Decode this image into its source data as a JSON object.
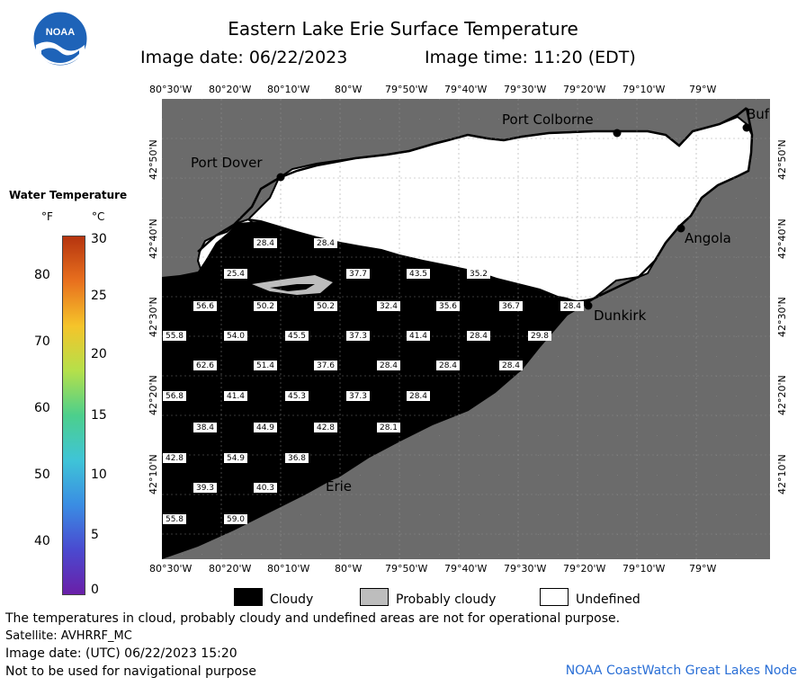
{
  "header": {
    "title": "Eastern Lake Erie Surface Temperature",
    "image_date": "Image date: 06/22/2023",
    "image_time": "Image time: 11:20 (EDT)"
  },
  "logo": {
    "text": "NOAA"
  },
  "map": {
    "lon_labels_top": [
      "80°30'W",
      "80°20'W",
      "80°10'W",
      "80°W",
      "79°50'W",
      "79°40'W",
      "79°30'W",
      "79°20'W",
      "79°10'W",
      "79°W"
    ],
    "lon_labels_bottom": [
      "80°30'W",
      "80°20'W",
      "80°10'W",
      "80°W",
      "79°50'W",
      "79°40'W",
      "79°30'W",
      "79°20'W",
      "79°10'W",
      "79°W"
    ],
    "lat_labels": [
      "42°50'N",
      "42°40'N",
      "42°30'N",
      "42°20'N",
      "42°10'N"
    ],
    "cities": [
      {
        "name": "Port Dover"
      },
      {
        "name": "Port Colborne"
      },
      {
        "name": "Buf"
      },
      {
        "name": "Angola"
      },
      {
        "name": "Dunkirk"
      },
      {
        "name": "Erie"
      }
    ],
    "temperatures": [
      "28.4",
      "28.4",
      "25.4",
      "37.7",
      "43.5",
      "35.2",
      "56.6",
      "50.2",
      "50.2",
      "32.4",
      "35.6",
      "36.7",
      "28.4",
      "55.8",
      "54.0",
      "45.5",
      "37.3",
      "41.4",
      "28.4",
      "29.8",
      "62.6",
      "51.4",
      "37.6",
      "28.4",
      "28.4",
      "28.4",
      "56.8",
      "41.4",
      "45.3",
      "37.3",
      "28.4",
      "38.4",
      "44.9",
      "42.8",
      "28.1",
      "42.8",
      "54.9",
      "36.8",
      "39.3",
      "40.3",
      "55.8",
      "59.0"
    ]
  },
  "legend": {
    "title": "Water Temperature",
    "unit_f": "°F",
    "unit_c": "°C",
    "f_ticks": [
      "80",
      "70",
      "60",
      "50",
      "40"
    ],
    "c_ticks": [
      "30",
      "25",
      "20",
      "15",
      "10",
      "5",
      "0"
    ],
    "colors": [
      "#b5340f",
      "#e8701e",
      "#f5c42a",
      "#b5e04a",
      "#4ccf8c",
      "#3fc4d7",
      "#3a8de3",
      "#4a4ad0",
      "#6a1fa8"
    ],
    "cloudy": "Cloudy",
    "probably_cloudy": "Probably cloudy",
    "undefined": "Undefined",
    "cloudy_color": "#000000",
    "probably_cloudy_color": "#bdbdbd",
    "undefined_color": "#ffffff",
    "land_color": "#6b6b6b"
  },
  "footer": {
    "line1": "The temperatures in cloud, probably cloudy and undefined areas are not for operational purpose.",
    "line2": "Satellite: AVHRRF_MC",
    "line3": "Image date: (UTC) 06/22/2023  15:20",
    "line4": "Not to be used for navigational purpose",
    "credit": "NOAA CoastWatch Great Lakes Node"
  }
}
